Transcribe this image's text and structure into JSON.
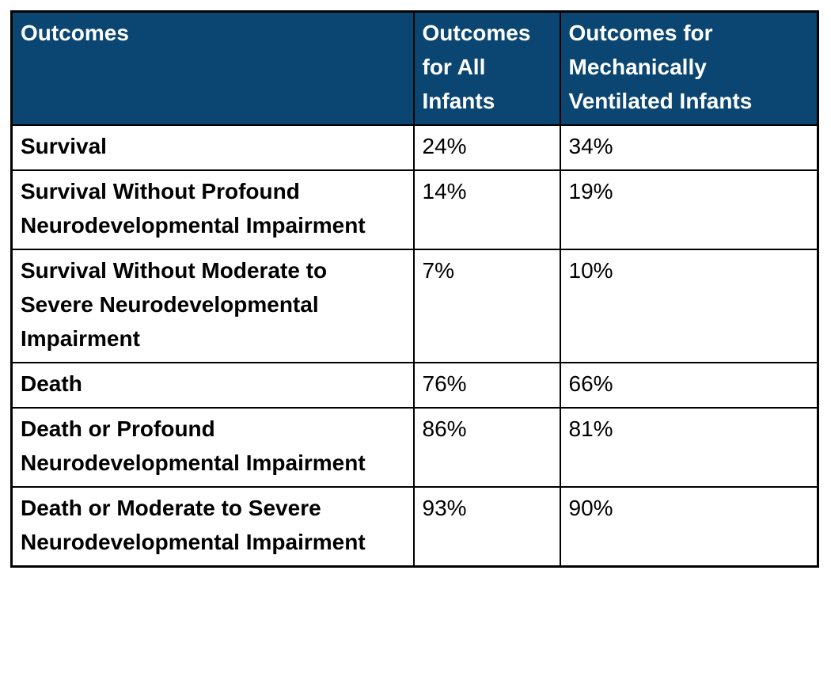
{
  "colors": {
    "header-bg": "#0a4671",
    "header-text": "#ffffff",
    "border": "#000000",
    "body-text": "#000000",
    "row-bg": "#ffffff"
  },
  "table": {
    "columns": [
      "Outcomes",
      "Outcomes for All Infants",
      "Outcomes for Mechanically Ventilated Infants"
    ],
    "rows": [
      [
        "Survival",
        "24%",
        "34%"
      ],
      [
        "Survival Without Profound Neurodevelopmental Impairment",
        "14%",
        "19%"
      ],
      [
        "Survival Without Moderate to Severe Neurodevelopmental Impairment",
        "7%",
        "10%"
      ],
      [
        "Death",
        "76%",
        "66%"
      ],
      [
        "Death or Profound Neurodevelopmental Impairment",
        "86%",
        "81%"
      ],
      [
        "Death or Moderate to Severe Neurodevelopmental Impairment",
        "93%",
        "90%"
      ]
    ]
  }
}
